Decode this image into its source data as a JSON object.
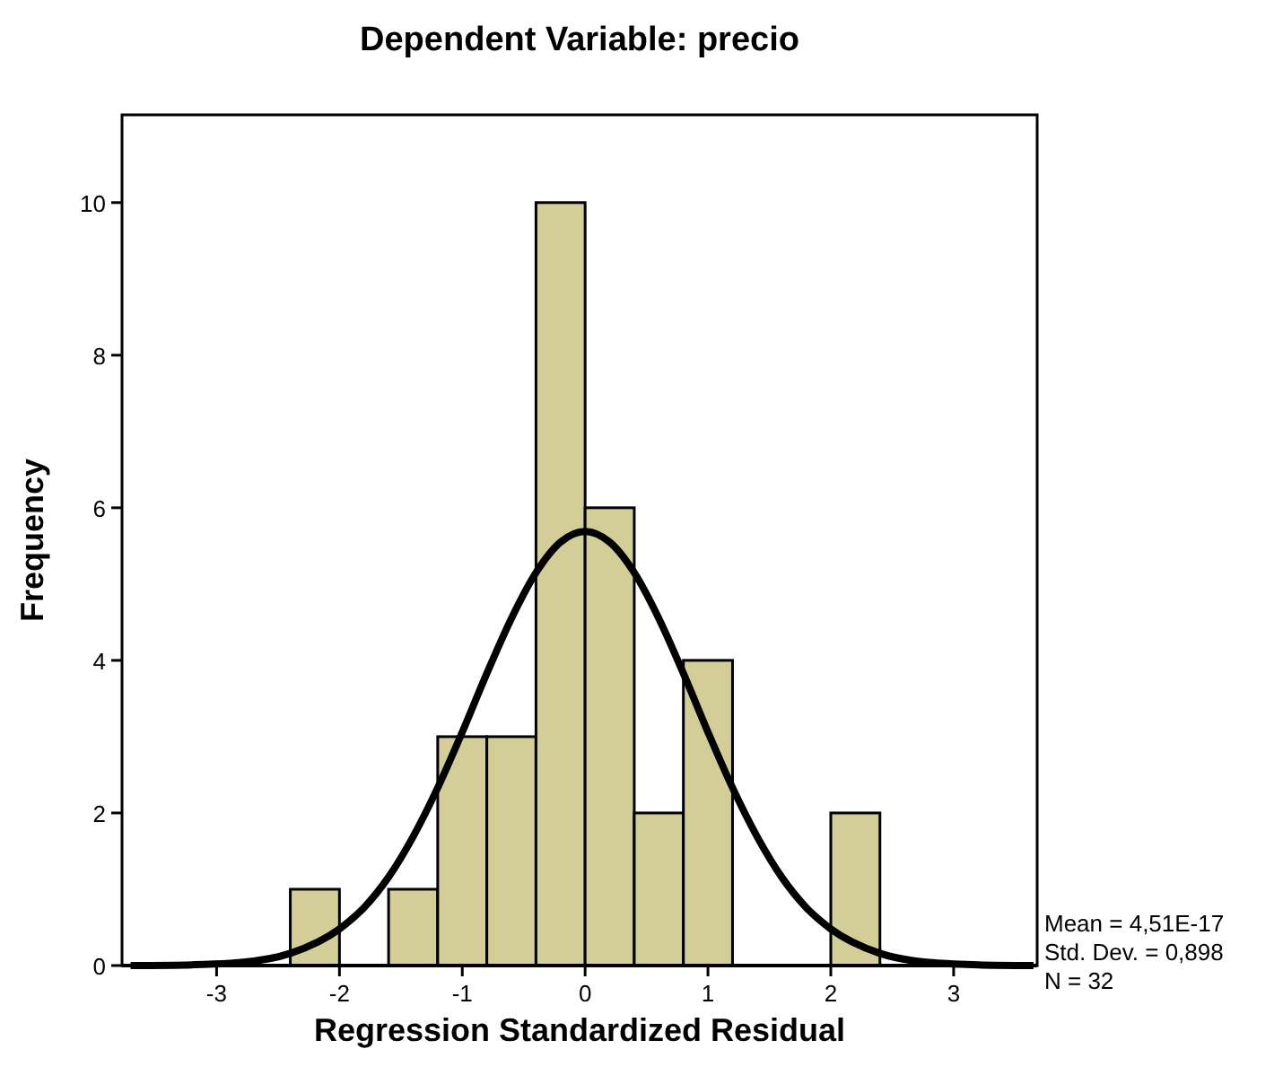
{
  "chart_data": {
    "type": "histogram",
    "title": "Dependent Variable: precio",
    "xlabel": "Regression Standardized Residual",
    "ylabel": "Frequency",
    "bins": [
      -2.4,
      -2.0,
      -1.6,
      -1.2,
      -0.8,
      -0.4,
      0,
      0.4,
      0.8,
      1.2,
      1.6,
      2.0,
      2.4
    ],
    "values": [
      1,
      0,
      1,
      3,
      3,
      10,
      6,
      2,
      4,
      0,
      0,
      2
    ],
    "color": "#d3ce97",
    "series": [
      {
        "type": "line",
        "color": "#000000",
        "x": [
          -3.7,
          -3.2,
          -2.8,
          -2.4,
          -2.0,
          -1.8,
          -1.6,
          -1.4,
          -1.2,
          -1.0,
          -0.8,
          -0.6,
          -0.4,
          -0.2,
          0,
          0.2,
          0.4,
          0.6,
          0.8,
          1.0,
          1.2,
          1.4,
          1.6,
          1.8,
          2.0,
          2.4,
          2.8,
          3.2,
          3.65
        ],
        "values": [
          0,
          0.01,
          0.04,
          0.16,
          0.48,
          0.76,
          1.16,
          1.69,
          2.33,
          3.06,
          3.83,
          4.55,
          5.15,
          5.55,
          5.69,
          5.55,
          5.15,
          4.55,
          3.83,
          3.06,
          2.33,
          1.69,
          1.16,
          0.76,
          0.48,
          0.16,
          0.04,
          0.01,
          0
        ]
      }
    ],
    "xlim": [
      -3.77,
      3.68
    ],
    "xticks": [
      -3,
      -2,
      -1,
      0,
      1,
      2,
      3
    ],
    "ylim": [
      0,
      11.15
    ],
    "yticks": [
      0,
      2,
      4,
      6,
      8,
      10
    ],
    "grid": false,
    "annotations": [
      "Mean = 4,51E-17",
      "Std. Dev. = 0,898",
      "N = 32"
    ]
  }
}
